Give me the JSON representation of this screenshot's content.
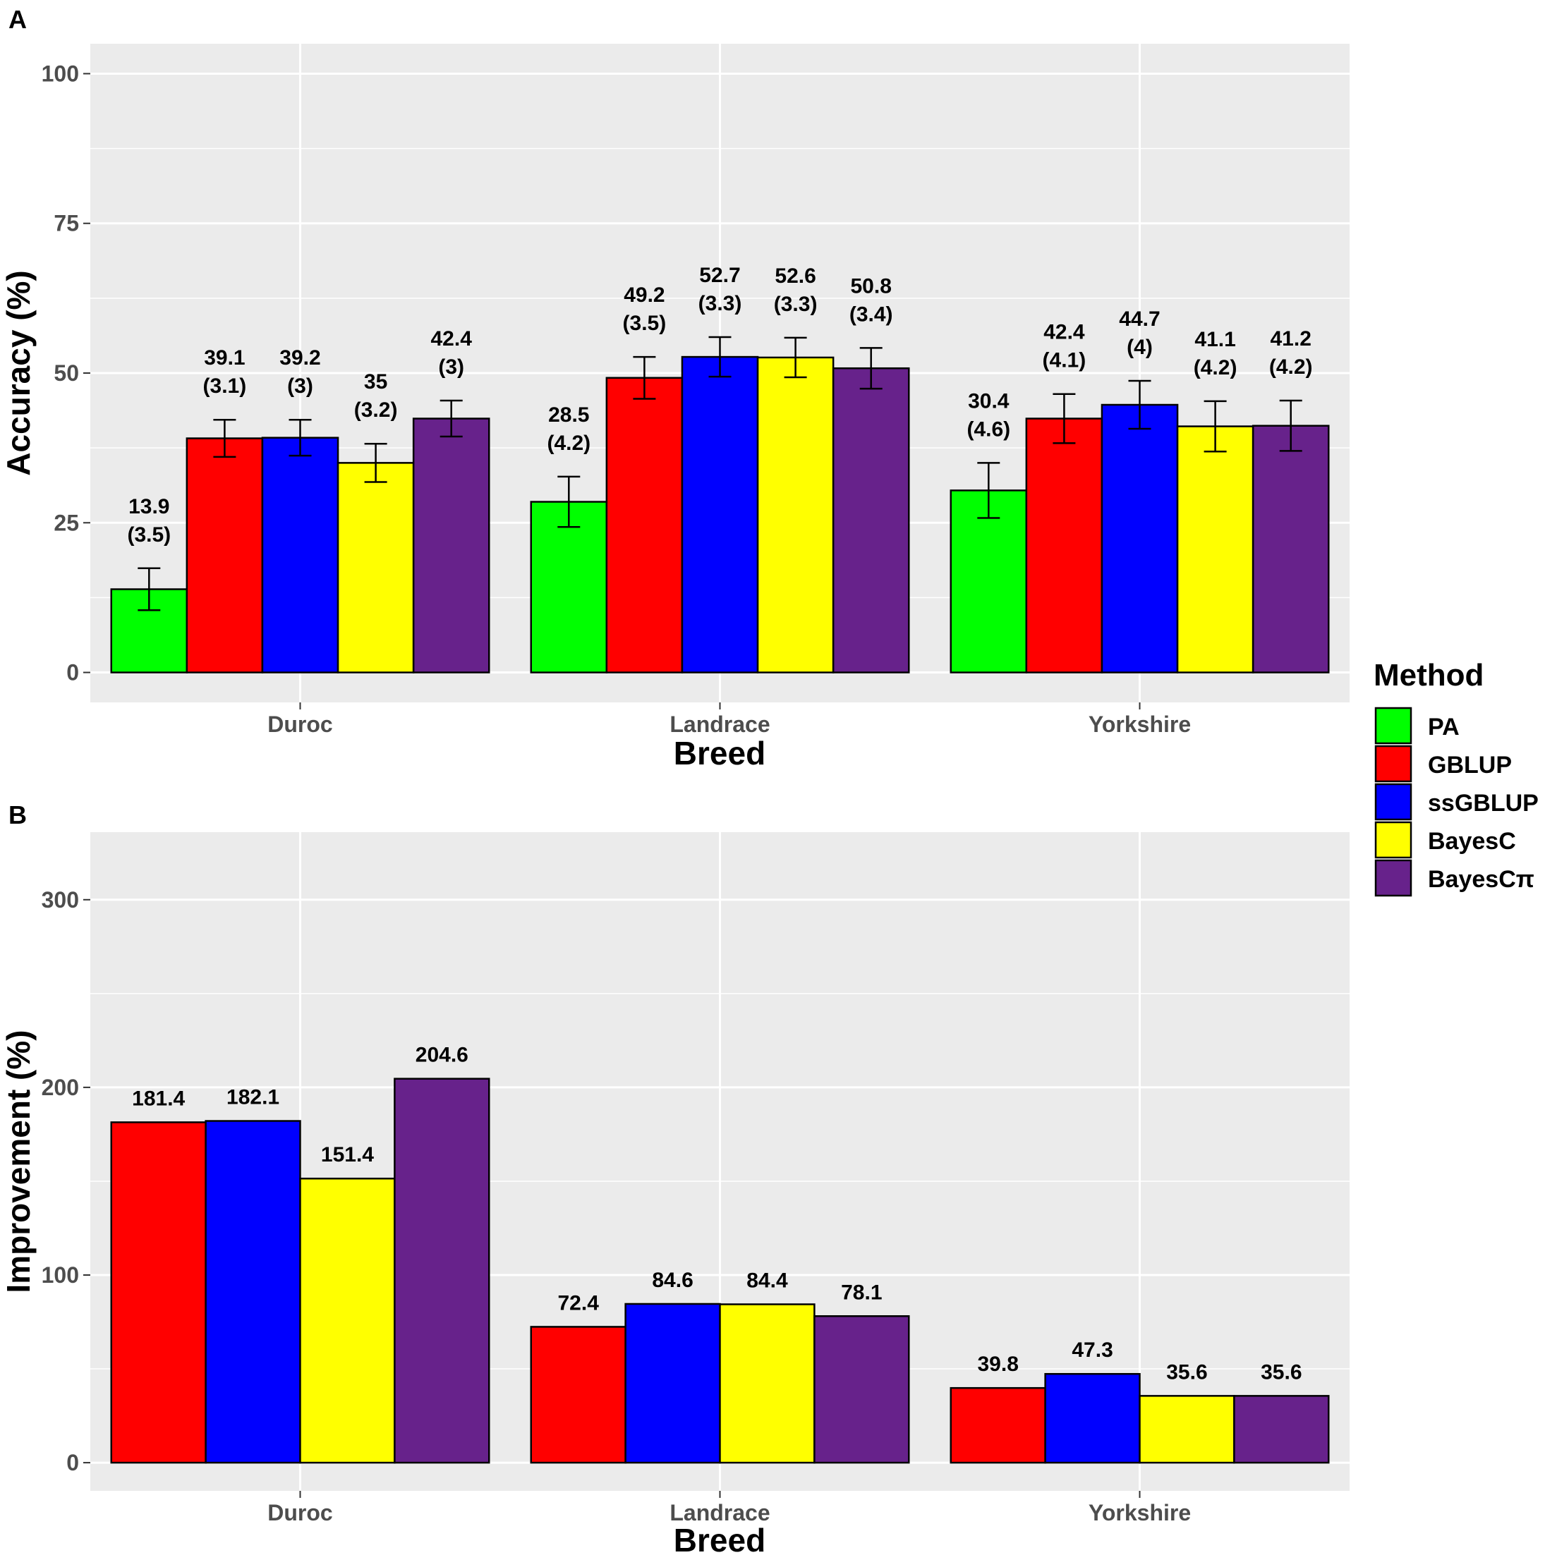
{
  "colors": {
    "PA": "#00ff00",
    "GBLUP": "#ff0000",
    "ssGBLUP": "#0000ff",
    "BayesC": "#ffff00",
    "BayesCπ": "#67228b",
    "panel_bg": "#ebebeb",
    "grid": "#ffffff"
  },
  "legend": {
    "title": "Method",
    "items": [
      "PA",
      "GBLUP",
      "ssGBLUP",
      "BayesC",
      "BayesCπ"
    ]
  },
  "chart_data": [
    {
      "panel": "A",
      "type": "bar",
      "xlabel": "Breed",
      "ylabel": "Accuracy (%)",
      "ylim": [
        -5,
        105
      ],
      "yticks": [
        0,
        25,
        50,
        75,
        100
      ],
      "categories": [
        "Duroc",
        "Landrace",
        "Yorkshire"
      ],
      "series": [
        {
          "name": "PA",
          "values": [
            13.9,
            28.5,
            30.4
          ],
          "se": [
            3.5,
            4.2,
            4.6
          ],
          "labels": [
            "13.9\n(3.5)",
            "28.5\n(4.2)",
            "30.4\n(4.6)"
          ]
        },
        {
          "name": "GBLUP",
          "values": [
            39.1,
            49.2,
            42.4
          ],
          "se": [
            3.1,
            3.5,
            4.1
          ],
          "labels": [
            "39.1\n(3.1)",
            "49.2\n(3.5)",
            "42.4\n(4.1)"
          ]
        },
        {
          "name": "ssGBLUP",
          "values": [
            39.2,
            52.7,
            44.7
          ],
          "se": [
            3,
            3.3,
            4
          ],
          "labels": [
            "39.2\n(3)",
            "52.7\n(3.3)",
            "44.7\n(4)"
          ]
        },
        {
          "name": "BayesC",
          "values": [
            35,
            52.6,
            41.1
          ],
          "se": [
            3.2,
            3.3,
            4.2
          ],
          "labels": [
            "35\n(3.2)",
            "52.6\n(3.3)",
            "41.1\n(4.2)"
          ]
        },
        {
          "name": "BayesCπ",
          "values": [
            42.4,
            50.8,
            41.2
          ],
          "se": [
            3,
            3.4,
            4.2
          ],
          "labels": [
            "42.4\n(3)",
            "50.8\n(3.4)",
            "41.2\n(4.2)"
          ]
        }
      ]
    },
    {
      "panel": "B",
      "type": "bar",
      "xlabel": "Breed",
      "ylabel": "Improvement (%)",
      "ylim": [
        -15,
        336
      ],
      "yticks": [
        0,
        100,
        200,
        300
      ],
      "categories": [
        "Duroc",
        "Landrace",
        "Yorkshire"
      ],
      "series": [
        {
          "name": "GBLUP",
          "values": [
            181.4,
            72.4,
            39.8
          ],
          "labels": [
            "181.4",
            "72.4",
            "39.8"
          ]
        },
        {
          "name": "ssGBLUP",
          "values": [
            182.1,
            84.6,
            47.3
          ],
          "labels": [
            "182.1",
            "84.6",
            "47.3"
          ]
        },
        {
          "name": "BayesC",
          "values": [
            151.4,
            84.4,
            35.6
          ],
          "labels": [
            "151.4",
            "84.4",
            "35.6"
          ]
        },
        {
          "name": "BayesCπ",
          "values": [
            204.6,
            78.1,
            35.6
          ],
          "labels": [
            "204.6",
            "78.1",
            "35.6"
          ]
        }
      ]
    }
  ]
}
